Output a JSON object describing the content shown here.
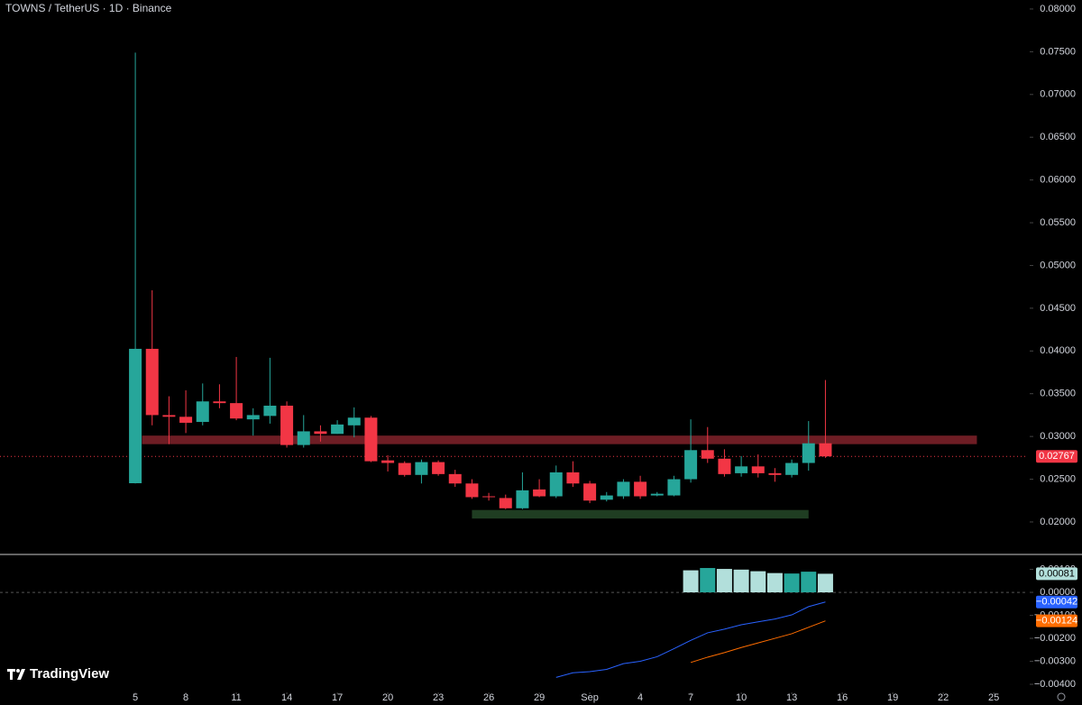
{
  "chart_data": [
    {
      "type": "candlestick",
      "title": "TOWNS / TetherUS · 1D · Binance",
      "watermark": "TradingView",
      "x": [
        0,
        1,
        2,
        3,
        4,
        5,
        6,
        7,
        8,
        9,
        10,
        11,
        12,
        13,
        14,
        15,
        16,
        17,
        18,
        19,
        20,
        21,
        22,
        23,
        24,
        25,
        26,
        27,
        28,
        29,
        30,
        31,
        32,
        33,
        34,
        35,
        36,
        37,
        38,
        39,
        40,
        41
      ],
      "open": [
        0.02453,
        0.04025,
        0.0325,
        0.0323,
        0.0317,
        0.0341,
        0.0339,
        0.032,
        0.0324,
        0.0336,
        0.029,
        0.0306,
        0.0303,
        0.0313,
        0.0322,
        0.0272,
        0.0269,
        0.0255,
        0.027,
        0.0256,
        0.0245,
        0.023,
        0.0228,
        0.0216,
        0.0238,
        0.023,
        0.0258,
        0.0245,
        0.0226,
        0.023,
        0.0247,
        0.0231,
        0.0231,
        0.025,
        0.0284,
        0.0274,
        0.0257,
        0.0265,
        0.0257,
        0.0255,
        0.0269,
        0.0292
      ],
      "high": [
        0.0749,
        0.0471,
        0.0347,
        0.0354,
        0.0362,
        0.0361,
        0.0393,
        0.0333,
        0.0392,
        0.0341,
        0.0325,
        0.0313,
        0.0319,
        0.0334,
        0.0324,
        0.0278,
        0.0271,
        0.0273,
        0.0272,
        0.0261,
        0.025,
        0.0234,
        0.0232,
        0.0258,
        0.025,
        0.0266,
        0.0271,
        0.0248,
        0.0235,
        0.025,
        0.0254,
        0.0235,
        0.0254,
        0.032,
        0.0311,
        0.0285,
        0.0277,
        0.0279,
        0.0263,
        0.0273,
        0.0318,
        0.0366
      ],
      "low": [
        0.0245,
        0.0313,
        0.0291,
        0.0304,
        0.0313,
        0.0333,
        0.0319,
        0.0301,
        0.0315,
        0.0287,
        0.0287,
        0.0294,
        0.0303,
        0.0299,
        0.027,
        0.0259,
        0.0253,
        0.0245,
        0.0254,
        0.0241,
        0.0227,
        0.0225,
        0.0215,
        0.0215,
        0.0229,
        0.0228,
        0.0241,
        0.0222,
        0.0224,
        0.0227,
        0.0227,
        0.023,
        0.023,
        0.0246,
        0.0269,
        0.0253,
        0.0253,
        0.0252,
        0.0247,
        0.0252,
        0.026,
        0.0275
      ],
      "close": [
        0.04025,
        0.0325,
        0.0323,
        0.0316,
        0.0341,
        0.0339,
        0.0321,
        0.0325,
        0.0336,
        0.029,
        0.0306,
        0.0303,
        0.0314,
        0.0322,
        0.0271,
        0.0269,
        0.0255,
        0.027,
        0.0256,
        0.0245,
        0.0229,
        0.0229,
        0.0216,
        0.0237,
        0.023,
        0.0258,
        0.0245,
        0.0225,
        0.0231,
        0.0247,
        0.023,
        0.0233,
        0.025,
        0.0284,
        0.0274,
        0.0256,
        0.0265,
        0.0257,
        0.0255,
        0.0269,
        0.0292,
        0.02767
      ],
      "up_color": "#26a69a",
      "down_color": "#f23645",
      "last_price": 0.02767,
      "zones": [
        {
          "low": 0.0291,
          "high": 0.0301,
          "start": 0.4,
          "end": 50,
          "color": "#6e1d24"
        },
        {
          "low": 0.0204,
          "high": 0.0214,
          "start": 20,
          "end": 40,
          "color": "#1f3d22"
        }
      ],
      "xlim": [
        -8.04,
        53.03
      ],
      "ylim": [
        0.0162,
        0.08105
      ],
      "yticks": [
        {
          "value": 0.02,
          "label": "0.02000"
        },
        {
          "value": 0.025,
          "label": "0.02500"
        },
        {
          "value": 0.03,
          "label": "0.03000"
        },
        {
          "value": 0.035,
          "label": "0.03500"
        },
        {
          "value": 0.04,
          "label": "0.04000"
        },
        {
          "value": 0.045,
          "label": "0.04500"
        },
        {
          "value": 0.05,
          "label": "0.05000"
        },
        {
          "value": 0.055,
          "label": "0.05500"
        },
        {
          "value": 0.06,
          "label": "0.06000"
        },
        {
          "value": 0.065,
          "label": "0.06500"
        },
        {
          "value": 0.07,
          "label": "0.07000"
        },
        {
          "value": 0.075,
          "label": "0.07500"
        },
        {
          "value": 0.08,
          "label": "0.08000"
        }
      ]
    },
    {
      "type": "macd",
      "series": [
        {
          "type": "bar",
          "x": [
            33,
            34,
            35,
            36,
            37,
            38,
            39,
            40,
            41
          ],
          "values": [
            0.00096,
            0.00106,
            0.00102,
            0.00099,
            0.00092,
            0.00084,
            0.00082,
            0.0009,
            0.00081
          ],
          "colors": [
            "#b2dfdb",
            "#26a69a",
            "#b2dfdb",
            "#b2dfdb",
            "#b2dfdb",
            "#b2dfdb",
            "#26a69a",
            "#26a69a",
            "#b2dfdb"
          ],
          "color": "#b2dfdb"
        },
        {
          "type": "line",
          "x": [
            25,
            26,
            27,
            28,
            29,
            30,
            31,
            32,
            33,
            34,
            35,
            36,
            37,
            38,
            39,
            40,
            41
          ],
          "values": [
            -0.0037,
            -0.0035,
            -0.00345,
            -0.00335,
            -0.0031,
            -0.003,
            -0.0028,
            -0.00245,
            -0.00209,
            -0.00176,
            -0.0016,
            -0.00141,
            -0.00128,
            -0.00116,
            -0.00098,
            -0.00062,
            -0.00042
          ],
          "value_labels": [
            null,
            null,
            null,
            null,
            null,
            null,
            null,
            null,
            null,
            null,
            null,
            null,
            null,
            null,
            null,
            null,
            "−0.00042"
          ],
          "color": "#2962ff"
        },
        {
          "type": "line",
          "x": [
            33,
            34,
            35,
            36,
            37,
            38,
            39,
            40,
            41
          ],
          "values": [
            -0.00305,
            -0.00282,
            -0.00262,
            -0.0024,
            -0.0022,
            -0.002,
            -0.0018,
            -0.00152,
            -0.00124
          ],
          "value_labels": [
            null,
            null,
            null,
            null,
            null,
            null,
            null,
            null,
            "−0.00124"
          ],
          "color": "#ff6d00"
        }
      ],
      "xlim": [
        -8.04,
        53.03
      ],
      "ylim": [
        -0.00443,
        0.00165
      ],
      "xticks": [
        {
          "value": 0,
          "label": "5"
        },
        {
          "value": 3,
          "label": "8"
        },
        {
          "value": 6,
          "label": "11"
        },
        {
          "value": 9,
          "label": "14"
        },
        {
          "value": 12,
          "label": "17"
        },
        {
          "value": 15,
          "label": "20"
        },
        {
          "value": 18,
          "label": "23"
        },
        {
          "value": 21,
          "label": "26"
        },
        {
          "value": 24,
          "label": "29"
        },
        {
          "value": 27,
          "label": "Sep"
        },
        {
          "value": 30,
          "label": "4"
        },
        {
          "value": 33,
          "label": "7"
        },
        {
          "value": 36,
          "label": "10"
        },
        {
          "value": 39,
          "label": "13"
        },
        {
          "value": 42,
          "label": "16"
        },
        {
          "value": 45,
          "label": "19"
        },
        {
          "value": 48,
          "label": "22"
        },
        {
          "value": 51,
          "label": "25"
        }
      ],
      "yticks": [
        {
          "value": 0.001,
          "label": "0.00100"
        },
        {
          "value": 0,
          "label": "0.00000"
        },
        {
          "value": -0.001,
          "label": "−0.00100"
        },
        {
          "value": -0.002,
          "label": "−0.00200"
        },
        {
          "value": -0.003,
          "label": "−0.00300"
        },
        {
          "value": -0.004,
          "label": "−0.00400"
        }
      ]
    }
  ]
}
